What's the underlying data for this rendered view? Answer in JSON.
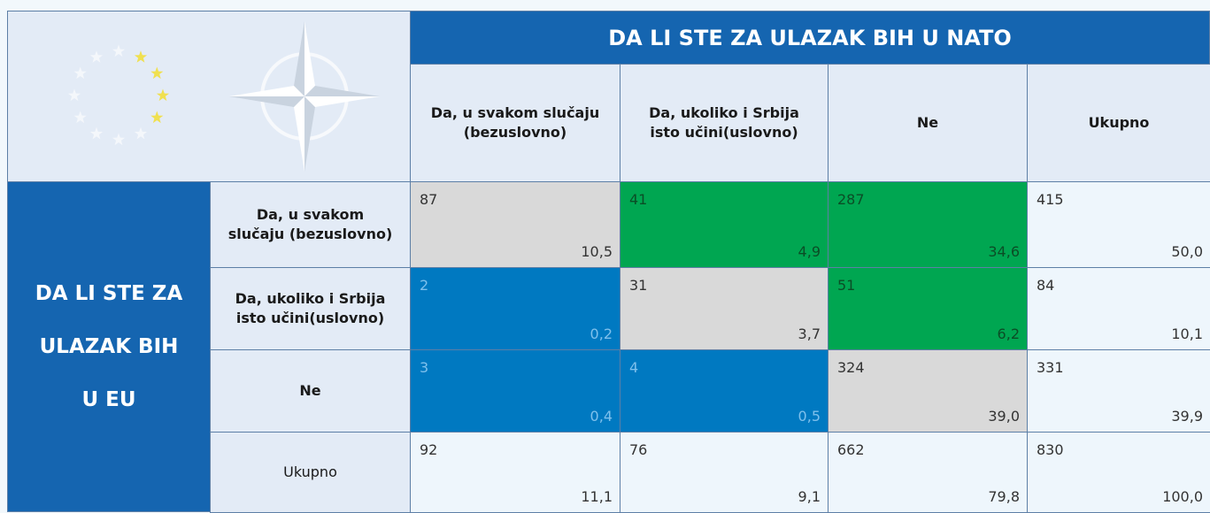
{
  "table": {
    "title": "DA LI STE ZA ULAZAK BIH U NATO",
    "row_title": [
      "DA LI STE ZA",
      "ULAZAK BIH",
      "U EU"
    ],
    "columns": [
      "Da, u svakom slučaju (bezuslovno)",
      "Da, ukoliko i Srbija isto učini(uslovno)",
      "Ne",
      "Ukupno"
    ],
    "row_labels": [
      "Da, u svakom slučaju (bezuslovno)",
      "Da, ukoliko i Srbija isto učini(uslovno)",
      "Ne",
      "Ukupno"
    ],
    "rows": [
      [
        {
          "count": 87,
          "percent": "10,5",
          "fill": "#d9d9d9"
        },
        {
          "count": 41,
          "percent": "4,9",
          "fill": "#00a651"
        },
        {
          "count": 287,
          "percent": "34,6",
          "fill": "#00a651"
        },
        {
          "count": 415,
          "percent": "50,0",
          "fill": "#eef6fc"
        }
      ],
      [
        {
          "count": 2,
          "percent": "0,2",
          "fill": "#0079c1"
        },
        {
          "count": 31,
          "percent": "3,7",
          "fill": "#d9d9d9"
        },
        {
          "count": 51,
          "percent": "6,2",
          "fill": "#00a651"
        },
        {
          "count": 84,
          "percent": "10,1",
          "fill": "#eef6fc"
        }
      ],
      [
        {
          "count": 3,
          "percent": "0,4",
          "fill": "#0079c1"
        },
        {
          "count": 4,
          "percent": "0,5",
          "fill": "#0079c1"
        },
        {
          "count": 324,
          "percent": "39,0",
          "fill": "#d9d9d9"
        },
        {
          "count": 331,
          "percent": "39,9",
          "fill": "#eef6fc"
        }
      ],
      [
        {
          "count": 92,
          "percent": "11,1",
          "fill": "#eef6fc"
        },
        {
          "count": 76,
          "percent": "9,1",
          "fill": "#eef6fc"
        },
        {
          "count": 662,
          "percent": "79,8",
          "fill": "#eef6fc"
        },
        {
          "count": 830,
          "percent": "100,0",
          "fill": "#eef6fc"
        }
      ]
    ]
  }
}
